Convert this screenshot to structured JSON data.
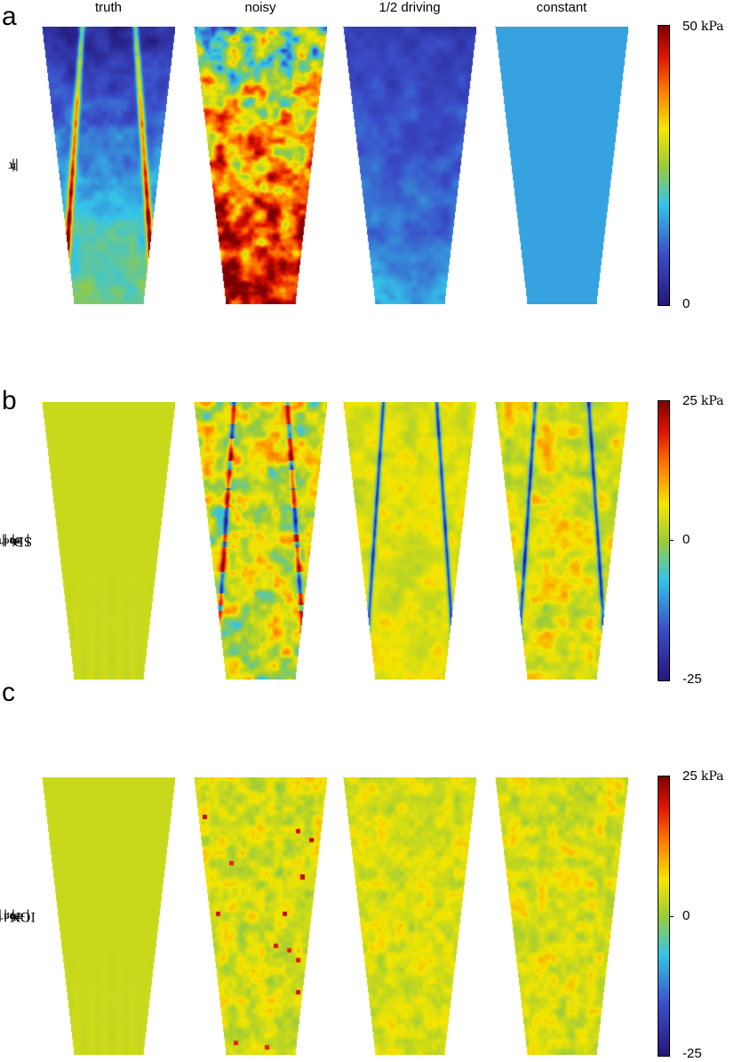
{
  "columns": [
    "truth",
    "noisy",
    "1/2 driving",
    "constant"
  ],
  "panels": [
    {
      "letter": "a",
      "row_label": {
        "prefix": "|τ",
        "sub": "b",
        "suffix": "|"
      },
      "colorbar": {
        "top_value": "50",
        "unit": "kPa",
        "mid_value": "",
        "bottom_value": "0"
      },
      "fields": [
        "truth-field",
        "noisy-field",
        "half-driving-field",
        "constant-field"
      ]
    },
    {
      "letter": "b",
      "row_label": {
        "prefix": "SD: |τ",
        "sub": "b",
        "sup": "true",
        "middle": "| − |τ",
        "sub2": "b",
        "sup2": "mod",
        "suffix": "|"
      },
      "colorbar": {
        "top_value": "25",
        "unit": "kPa",
        "mid_value": "0",
        "bottom_value": "-25"
      },
      "fields": [
        "zero-diff-field",
        "noisy-sd-diff",
        "half-driving-sd-diff",
        "constant-sd-diff"
      ]
    },
    {
      "letter": "c",
      "row_label": {
        "prefix": "IGN: |τ",
        "sub": "b",
        "sup": "true",
        "middle": "| − |τ",
        "sub2": "b",
        "sup2": "mod",
        "suffix": "|"
      },
      "colorbar": {
        "top_value": "25",
        "unit": "kPa",
        "mid_value": "0",
        "bottom_value": "-25"
      },
      "fields": [
        "zero-diff-field",
        "noisy-ign-diff",
        "half-driving-ign-diff",
        "constant-ign-diff"
      ]
    }
  ],
  "colors": {
    "colormap": [
      "#24177a",
      "#3a4cc8",
      "#34c4e8",
      "#9ccc38",
      "#f4e600",
      "#ff7a00",
      "#e01400",
      "#7f0000"
    ],
    "constant_field": "#5a9bd6",
    "zero_diff": "#9bc752"
  }
}
